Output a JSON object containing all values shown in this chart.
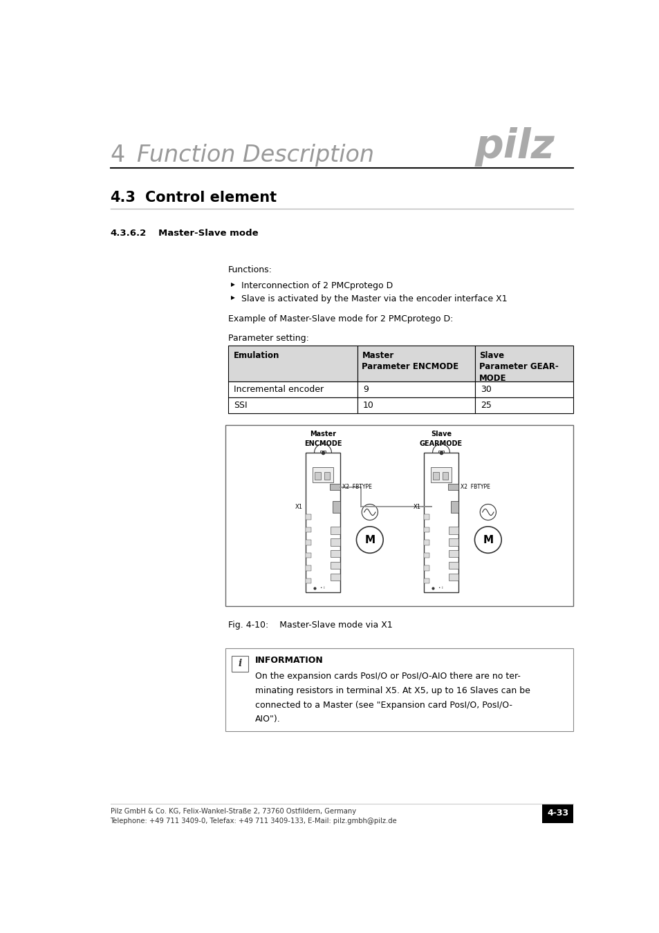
{
  "page_width": 9.54,
  "page_height": 13.5,
  "bg_color": "#ffffff",
  "header_number": "4",
  "header_title": "Function Description",
  "section_number": "4.3",
  "section_title": "Control element",
  "subsection_number": "4.3.6.2",
  "subsection_title": "Master-Slave mode",
  "functions_label": "Functions:",
  "bullet1": "Interconnection of 2 PMCprotego D",
  "bullet2": "Slave is activated by the Master via the encoder interface X1",
  "example_text": "Example of Master-Slave mode for 2 PMCprotego D:",
  "param_label": "Parameter setting:",
  "table_headers": [
    "Emulation",
    "Master\nParameter ENCMODE",
    "Slave\nParameter GEAR-\nMODE"
  ],
  "table_row1": [
    "Incremental encoder",
    "9",
    "30"
  ],
  "table_row2": [
    "SSI",
    "10",
    "25"
  ],
  "fig_caption": "Fig. 4-10:    Master-Slave mode via X1",
  "info_title": "INFORMATION",
  "info_line1": "On the expansion cards PosI/O or PosI/O-AIO there are no ter-",
  "info_line2": "minating resistors in terminal X5. At X5, up to 16 Slaves can be",
  "info_line3": "connected to a Master (see \"Expansion card PosI/O, PosI/O-",
  "info_line4": "AIO\").",
  "footer_line1": "Pilz GmbH & Co. KG, Felix-Wankel-Straße 2, 73760 Ostfildern, Germany",
  "footer_line2": "Telephone: +49 711 3409-0, Telefax: +49 711 3409-133, E-Mail: pilz.gmbh@pilz.de",
  "page_number": "4-33",
  "pilz_color": "#aaaaaa",
  "header_gray": "#999999",
  "text_color": "#000000",
  "table_header_bg": "#d8d8d8",
  "table_border": "#000000",
  "diagram_border": "#666666",
  "info_box_border": "#888888",
  "drive_color": "#333333",
  "connection_color": "#888888"
}
